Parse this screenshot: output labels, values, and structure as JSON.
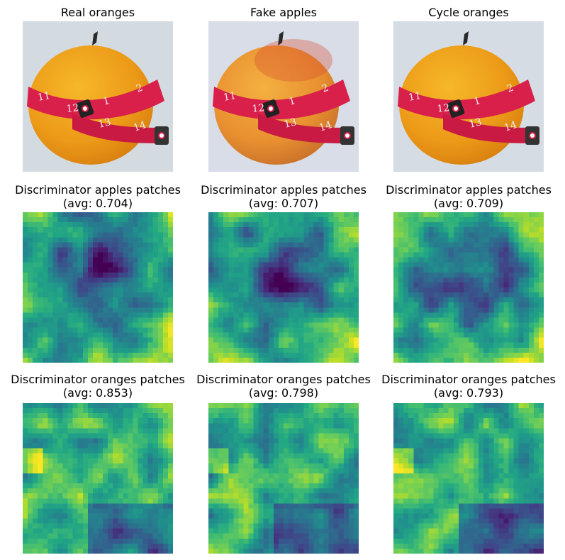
{
  "figure": {
    "row1": [
      {
        "title": "Real oranges"
      },
      {
        "title": "Fake apples"
      },
      {
        "title": "Cycle oranges"
      }
    ],
    "row2": [
      {
        "title": "Discriminator apples patches",
        "avg": "(avg: 0.704)"
      },
      {
        "title": "Discriminator apples patches",
        "avg": "(avg: 0.707)"
      },
      {
        "title": "Discriminator apples patches",
        "avg": "(avg: 0.709)"
      }
    ],
    "row3": [
      {
        "title": "Discriminator oranges patches",
        "avg": "(avg: 0.853)"
      },
      {
        "title": "Discriminator oranges patches",
        "avg": "(avg: 0.798)"
      },
      {
        "title": "Discriminator oranges patches",
        "avg": "(avg: 0.793)"
      }
    ],
    "tape_numbers": [
      "11",
      "12",
      "1",
      "2",
      "13",
      "14"
    ],
    "colors": {
      "orange": "#f0a020",
      "tape": "#d8204a",
      "background_real": "#d4dbe0",
      "background_fake": "#d9dde8"
    },
    "colormap": "viridis"
  }
}
